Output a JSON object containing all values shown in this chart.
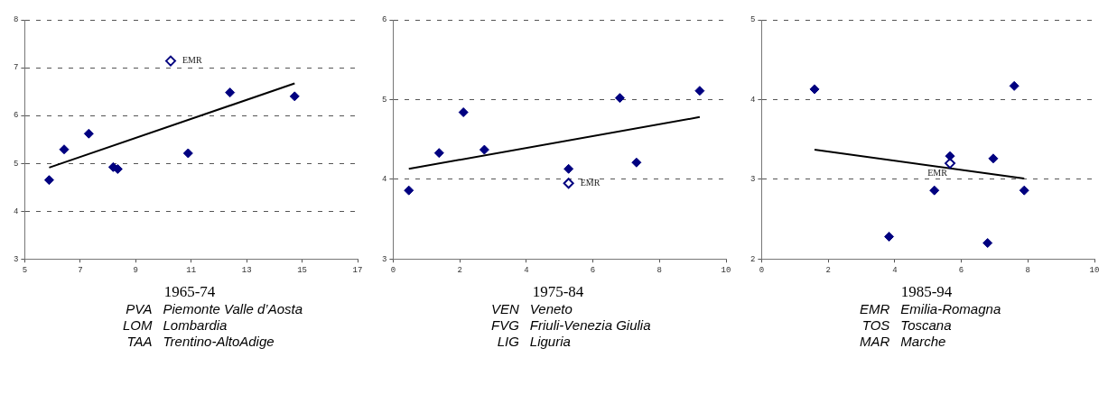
{
  "chart_data": [
    {
      "type": "scatter",
      "xlabel": "1965-74",
      "xlim": [
        5,
        17
      ],
      "xticks": [
        5,
        7,
        9,
        11,
        13,
        15,
        17
      ],
      "ylim": [
        3,
        8
      ],
      "yticks": [
        3,
        4,
        5,
        6,
        7,
        8
      ],
      "grid": "y",
      "legend": false,
      "marker": "diamond",
      "series": [
        {
          "color": "#000080",
          "x": [
            5.88,
            6.42,
            7.31,
            8.19,
            8.35,
            10.89,
            12.4,
            14.73
          ],
          "values": [
            4.65,
            5.29,
            5.62,
            4.92,
            4.88,
            5.21,
            6.48,
            6.4
          ]
        },
        {
          "color": "#000080",
          "x": [
            10.26
          ],
          "values": [
            7.14
          ]
        },
        {
          "type": "line",
          "color": "#000000",
          "marker": "none",
          "x": [
            5.88,
            14.73
          ],
          "values": [
            4.91,
            6.67
          ]
        }
      ],
      "annotations": [
        {
          "text": "EMR",
          "x": 10.26,
          "y": 7.14
        },
        "PVA Piemonte Valle d’Aosta",
        "LOM Lombardia",
        "TAA Trentino-AltoAdige"
      ]
    },
    {
      "type": "scatter",
      "xlabel": "1975-84",
      "xlim": [
        0,
        10
      ],
      "xticks": [
        0,
        2,
        4,
        6,
        8,
        10
      ],
      "ylim": [
        3,
        6
      ],
      "yticks": [
        3,
        4,
        5,
        6
      ],
      "grid": "y",
      "legend": false,
      "marker": "diamond",
      "series": [
        {
          "color": "#000080",
          "x": [
            0.47,
            1.38,
            2.11,
            2.74,
            5.27,
            6.81,
            7.31,
            9.21
          ],
          "values": [
            3.86,
            4.33,
            4.84,
            4.37,
            4.13,
            5.02,
            4.21,
            5.11
          ]
        },
        {
          "color": "#000080",
          "x": [
            5.27
          ],
          "values": [
            3.95
          ]
        },
        {
          "type": "line",
          "color": "#000000",
          "marker": "none",
          "x": [
            0.47,
            9.21
          ],
          "values": [
            4.13,
            4.78
          ]
        }
      ],
      "annotations": [
        {
          "text": "EMR",
          "x": 5.27,
          "y": 3.95
        },
        "VEN Veneto",
        "FVG Friuli-Venezia Giulia",
        "LIG Liguria"
      ]
    },
    {
      "type": "scatter",
      "xlabel": "1985-94",
      "xlim": [
        0,
        10
      ],
      "xticks": [
        0,
        2,
        4,
        6,
        8,
        10
      ],
      "ylim": [
        2,
        5
      ],
      "yticks": [
        2,
        3,
        4,
        5
      ],
      "grid": "y",
      "legend": false,
      "marker": "diamond",
      "series": [
        {
          "color": "#000080",
          "x": [
            1.59,
            3.83,
            5.19,
            5.66,
            6.79,
            6.96,
            7.59,
            7.89
          ],
          "values": [
            4.13,
            2.28,
            2.86,
            3.29,
            2.2,
            3.26,
            4.17,
            2.86
          ]
        },
        {
          "color": "#000080",
          "x": [
            5.66
          ],
          "values": [
            3.2
          ]
        },
        {
          "type": "line",
          "color": "#000000",
          "marker": "none",
          "x": [
            1.59,
            7.89
          ],
          "values": [
            3.37,
            3.01
          ]
        }
      ],
      "annotations": [
        {
          "text": "EMR",
          "x": 5.66,
          "y": 3.2
        },
        "EMR Emilia-Romagna",
        "TOS Toscana",
        "MAR Marche"
      ]
    }
  ]
}
